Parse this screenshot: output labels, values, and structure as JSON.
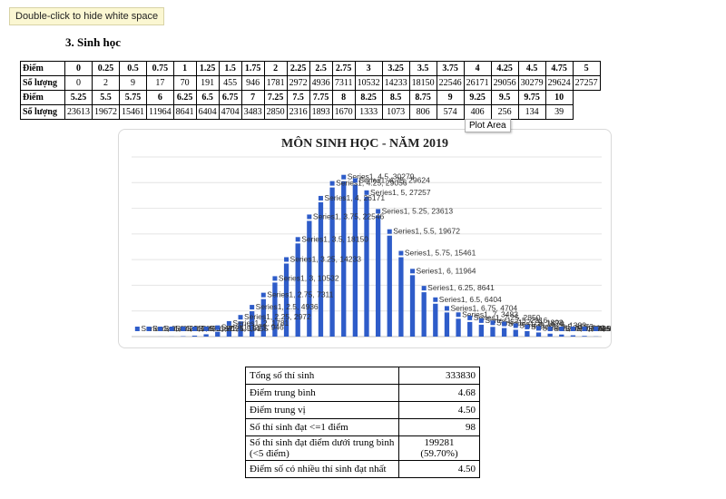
{
  "tooltip": "Double-click to hide white space",
  "section_heading": "3.  Sinh học",
  "plot_area_tip": "Plot Area",
  "score_table": {
    "rows": [
      {
        "label": "Điểm",
        "bold": true,
        "cells": [
          "0",
          "0.25",
          "0.5",
          "0.75",
          "1",
          "1.25",
          "1.5",
          "1.75",
          "2",
          "2.25",
          "2.5",
          "2.75",
          "3",
          "3.25",
          "3.5",
          "3.75",
          "4",
          "4.25",
          "4.5",
          "4.75",
          "5"
        ]
      },
      {
        "label": "Số lượng",
        "bold": false,
        "cells": [
          "0",
          "2",
          "9",
          "17",
          "70",
          "191",
          "455",
          "946",
          "1781",
          "2972",
          "4936",
          "7311",
          "10532",
          "14233",
          "18150",
          "22546",
          "26171",
          "29056",
          "30279",
          "29624",
          "27257"
        ]
      },
      {
        "label": "Điểm",
        "bold": true,
        "cells": [
          "5.25",
          "5.5",
          "5.75",
          "6",
          "6.25",
          "6.5",
          "6.75",
          "7",
          "7.25",
          "7.5",
          "7.75",
          "8",
          "8.25",
          "8.5",
          "8.75",
          "9",
          "9.25",
          "9.5",
          "9.75",
          "10"
        ]
      },
      {
        "label": "Số lượng",
        "bold": false,
        "cells": [
          "23613",
          "19672",
          "15461",
          "11964",
          "8641",
          "6404",
          "4704",
          "3483",
          "2850",
          "2316",
          "1893",
          "1670",
          "1333",
          "1073",
          "806",
          "574",
          "406",
          "256",
          "134",
          "39"
        ]
      }
    ]
  },
  "chart_data": {
    "type": "bar",
    "title": "MÔN SINH HỌC - NĂM 2019",
    "series": [
      {
        "name": "Series1",
        "values": [
          0,
          2,
          9,
          17,
          70,
          191,
          455,
          946,
          1781,
          2972,
          4936,
          7311,
          10532,
          14233,
          18150,
          22546,
          26171,
          29056,
          30279,
          29624,
          27257,
          23613,
          19672,
          15461,
          11964,
          8641,
          6404,
          4704,
          3483,
          2850,
          2316,
          1893,
          1670,
          1333,
          1073,
          806,
          574,
          406,
          256,
          134,
          39
        ]
      }
    ],
    "categories": [
      "0",
      "0.25",
      "0.5",
      "0.75",
      "1",
      "1.25",
      "1.5",
      "1.75",
      "2",
      "2.25",
      "2.5",
      "2.75",
      "3",
      "3.25",
      "3.5",
      "3.75",
      "4",
      "4.25",
      "4.5",
      "4.75",
      "5",
      "5.25",
      "5.5",
      "5.75",
      "6",
      "6.25",
      "6.5",
      "6.75",
      "7",
      "7.25",
      "7.5",
      "7.75",
      "8",
      "8.25",
      "8.5",
      "8.75",
      "9",
      "9.25",
      "9.5",
      "9.75",
      "10"
    ],
    "label_format": "series, category, value",
    "ylim": [
      0,
      35000
    ],
    "grid": true,
    "color": "#2e5cc9"
  },
  "stats_table": [
    {
      "label": "Tổng số thí sinh",
      "value": "333830"
    },
    {
      "label": "Điểm trung bình",
      "value": "4.68"
    },
    {
      "label": "Điểm trung vị",
      "value": "4.50"
    },
    {
      "label": "Số thí sinh đạt <=1 điểm",
      "value": "98"
    },
    {
      "label": "Số thí sinh đạt điểm dưới trung bình (<5 điểm)",
      "value": "199281",
      "value2": "(59.70%)"
    },
    {
      "label": "Điểm số có nhiều thí sinh đạt nhất",
      "value": "4.50"
    }
  ]
}
